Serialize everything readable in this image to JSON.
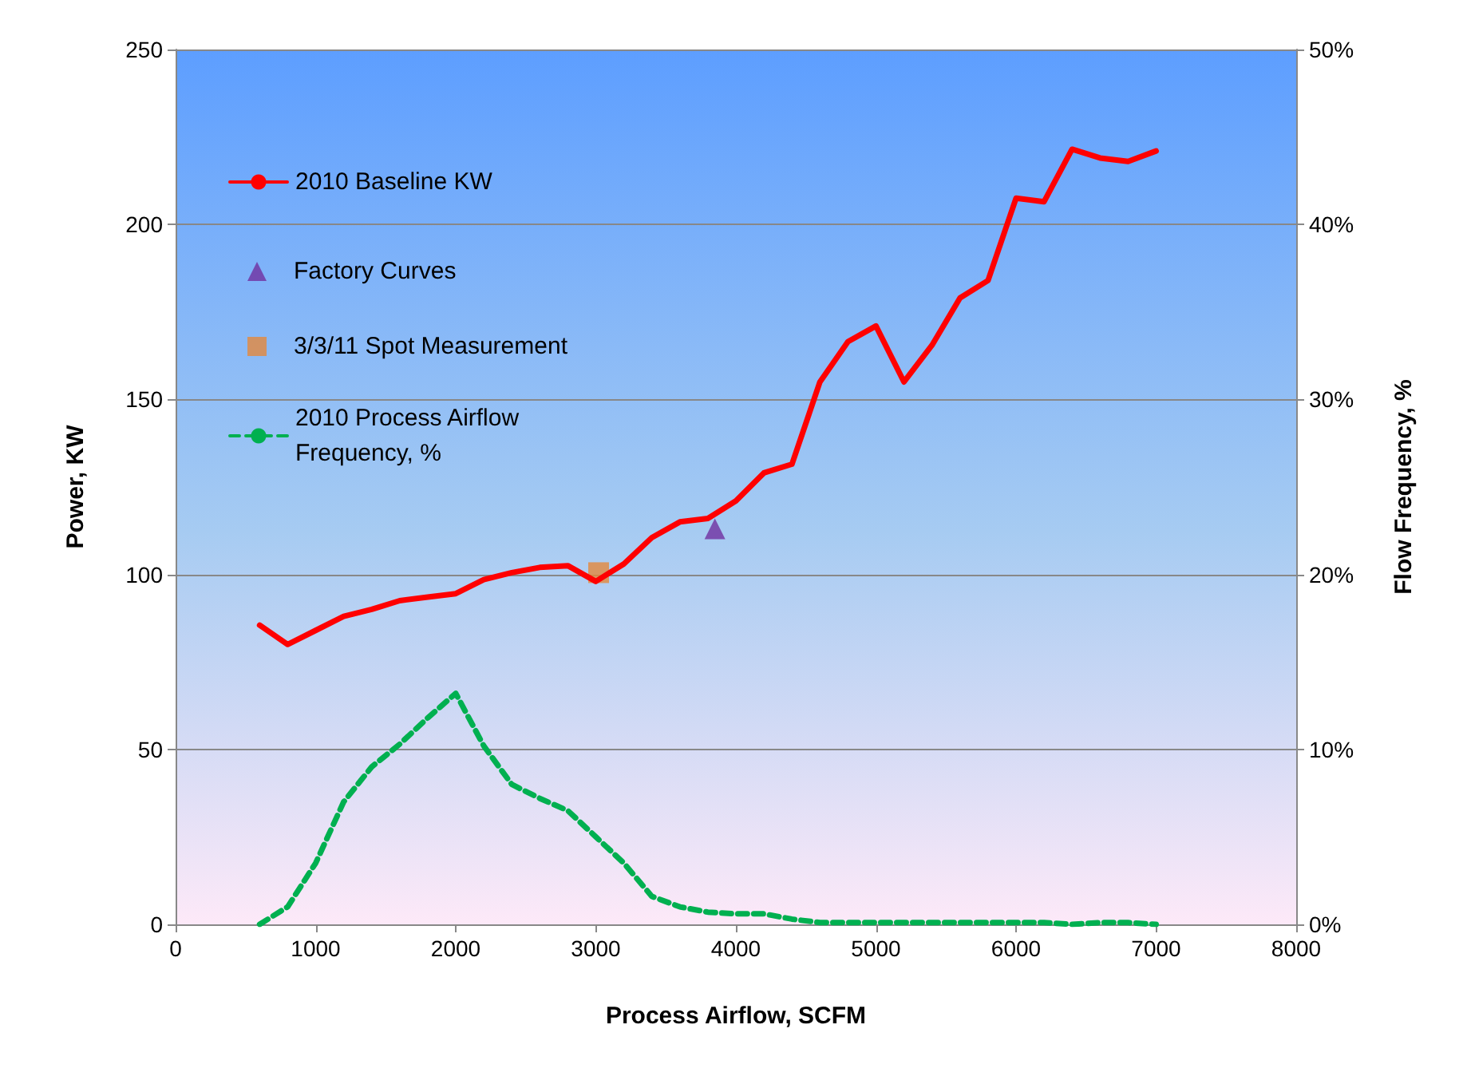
{
  "chart_data": {
    "type": "line",
    "xlabel": "Process Airflow, SCFM",
    "ylabel": "Power, KW",
    "y2label": "Flow Frequency, %",
    "xlim": [
      0,
      8000
    ],
    "xticks": [
      0,
      1000,
      2000,
      3000,
      4000,
      5000,
      6000,
      7000,
      8000
    ],
    "ylim": [
      0,
      250
    ],
    "yticks": [
      0,
      50,
      100,
      150,
      200,
      250
    ],
    "y2lim": [
      0,
      50
    ],
    "y2ticks": [
      {
        "value": 0,
        "label": "0%"
      },
      {
        "value": 10,
        "label": "10%"
      },
      {
        "value": 20,
        "label": "20%"
      },
      {
        "value": 30,
        "label": "30%"
      },
      {
        "value": 40,
        "label": "40%"
      },
      {
        "value": 50,
        "label": "50%"
      }
    ],
    "grid": "y",
    "legend": "top left",
    "marker": "none",
    "x": [
      600,
      800,
      1000,
      1200,
      1400,
      1600,
      1800,
      2000,
      2200,
      2400,
      2600,
      2800,
      3000,
      3200,
      3400,
      3600,
      3800,
      4000,
      4200,
      4400,
      4600,
      4800,
      5000,
      5200,
      5400,
      5600,
      5800,
      6000,
      6200,
      6400,
      6600,
      6800,
      7000
    ],
    "series": [
      {
        "name": "2010 Baseline KW",
        "color": "#ff0000",
        "line_style": "solid",
        "values": [
          85.5,
          80,
          84,
          88,
          90,
          92.5,
          93.5,
          94.5,
          98.5,
          100.5,
          102,
          102.5,
          98,
          103,
          110.5,
          115,
          116,
          121,
          129,
          131.5,
          155,
          166.5,
          171,
          155,
          165.5,
          179,
          184,
          207.5,
          206.5,
          221.5,
          219,
          218,
          221
        ]
      },
      {
        "name": "Factory Curves",
        "type": "scatter",
        "marker": "triangle",
        "color": "#7030a0",
        "x": [
          3850
        ],
        "values": [
          113
        ]
      },
      {
        "name": "3/3/11 Spot Measurement",
        "type": "scatter",
        "marker": "square",
        "color": "#e4883c",
        "x": [
          3020
        ],
        "values": [
          100.5
        ]
      },
      {
        "name": "2010 Process Airflow Frequency, %",
        "axis": "y2",
        "color": "#00b050",
        "line_style": "dashed",
        "values": [
          0,
          1,
          3.5,
          7,
          9,
          10.3,
          11.8,
          13.2,
          10.2,
          8,
          7.2,
          6.5,
          5,
          3.5,
          1.6,
          1,
          0.7,
          0.6,
          0.6,
          0.3,
          0.1,
          0.1,
          0.1,
          0.1,
          0.1,
          0.1,
          0.1,
          0.1,
          0.1,
          0,
          0.1,
          0.1,
          0
        ]
      }
    ]
  }
}
